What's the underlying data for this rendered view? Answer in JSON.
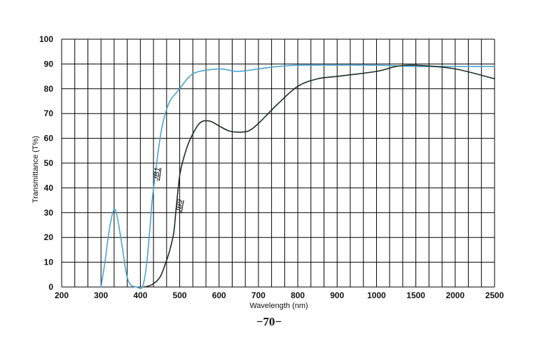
{
  "chart_data": {
    "type": "line",
    "xlabel": "Wavelength (nm)",
    "ylabel": "Transmittance (T%)",
    "x_ticks": [
      "200",
      "300",
      "400",
      "500",
      "600",
      "700",
      "800",
      "900",
      "1000",
      "1500",
      "2000",
      "2500"
    ],
    "y_ticks": [
      "0",
      "10",
      "20",
      "30",
      "40",
      "50",
      "60",
      "70",
      "80",
      "90",
      "100"
    ],
    "ylim": [
      0,
      100
    ],
    "grid": true,
    "x_scale": "non-uniform: 100 nm steps from 200 to 1000, then 500 nm steps to 2500",
    "series": [
      {
        "name": "JB1",
        "color": "#4aa3d3",
        "points": [
          [
            300,
            0
          ],
          [
            310,
            10
          ],
          [
            320,
            22
          ],
          [
            330,
            30
          ],
          [
            337,
            31
          ],
          [
            345,
            25
          ],
          [
            355,
            15
          ],
          [
            365,
            5
          ],
          [
            375,
            1
          ],
          [
            390,
            0
          ],
          [
            405,
            0
          ],
          [
            415,
            8
          ],
          [
            425,
            25
          ],
          [
            430,
            35
          ],
          [
            440,
            48
          ],
          [
            450,
            60
          ],
          [
            460,
            68
          ],
          [
            475,
            75
          ],
          [
            500,
            80
          ],
          [
            525,
            85
          ],
          [
            550,
            87
          ],
          [
            600,
            88
          ],
          [
            625,
            87.5
          ],
          [
            650,
            87
          ],
          [
            700,
            88
          ],
          [
            750,
            89
          ],
          [
            800,
            89.5
          ],
          [
            900,
            89.5
          ],
          [
            1000,
            89.5
          ],
          [
            1500,
            89
          ],
          [
            2000,
            89
          ],
          [
            2500,
            89
          ]
        ]
      },
      {
        "name": "JB9",
        "color": "#1a2e22",
        "points": [
          [
            410,
            0
          ],
          [
            430,
            1
          ],
          [
            450,
            4
          ],
          [
            465,
            10
          ],
          [
            475,
            15
          ],
          [
            485,
            22
          ],
          [
            490,
            30
          ],
          [
            500,
            45
          ],
          [
            510,
            52
          ],
          [
            525,
            59
          ],
          [
            550,
            66
          ],
          [
            575,
            67
          ],
          [
            600,
            65
          ],
          [
            625,
            63
          ],
          [
            650,
            62.5
          ],
          [
            675,
            63
          ],
          [
            700,
            66
          ],
          [
            750,
            74
          ],
          [
            800,
            81
          ],
          [
            850,
            84
          ],
          [
            900,
            85
          ],
          [
            1000,
            87
          ],
          [
            1250,
            89
          ],
          [
            1500,
            89.5
          ],
          [
            2000,
            88
          ],
          [
            2500,
            84
          ]
        ]
      }
    ]
  },
  "page_number": "−70−"
}
